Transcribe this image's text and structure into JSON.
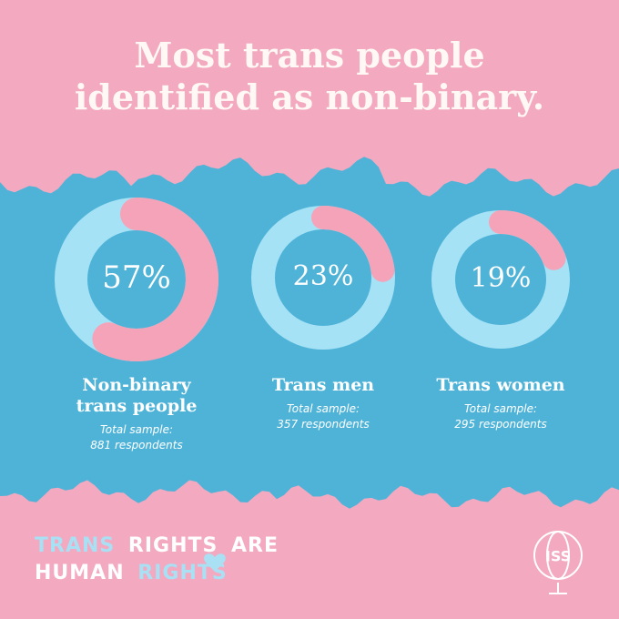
{
  "header": {
    "title": "Most trans people identified as non-binary."
  },
  "chart_data": [
    {
      "type": "donut",
      "title": "Non-binary trans people",
      "values": [
        57
      ],
      "value_labels": [
        "57%"
      ],
      "color": "#f5a3b8",
      "track_color": "#a6e2f6",
      "sample_label": "Total sample:",
      "sample": "881 respondents"
    },
    {
      "type": "donut",
      "title": "Trans men",
      "values": [
        23
      ],
      "value_labels": [
        "23%"
      ],
      "color": "#f5a3b8",
      "track_color": "#a6e2f6",
      "sample_label": "Total sample:",
      "sample": "357 respondents"
    },
    {
      "type": "donut",
      "title": "Trans women",
      "values": [
        19
      ],
      "value_labels": [
        "19%"
      ],
      "color": "#f5a3b8",
      "track_color": "#a6e2f6",
      "sample_label": "Total sample:",
      "sample": "295 respondents"
    }
  ],
  "footer": {
    "slogan": [
      "TRANS",
      "RIGHTS",
      "ARE",
      "HUMAN",
      "RIGHTS"
    ],
    "logo": "ISS"
  }
}
